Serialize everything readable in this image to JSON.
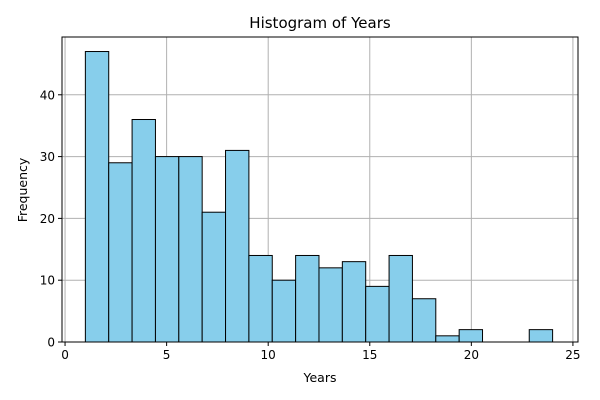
{
  "chart_data": {
    "type": "bar",
    "title": "Histogram of Years",
    "xlabel": "Years",
    "ylabel": "Frequency",
    "xlim": [
      -0.15,
      25.25
    ],
    "ylim": [
      0,
      49.35
    ],
    "x_ticks": [
      0,
      5,
      10,
      15,
      20,
      25
    ],
    "y_ticks": [
      0,
      10,
      20,
      30,
      40
    ],
    "grid": true,
    "bar_color": "#87ceeb",
    "edge_color": "#000000",
    "bins": [
      {
        "x0": 1.0,
        "x1": 2.15,
        "value": 47
      },
      {
        "x0": 2.15,
        "x1": 3.3,
        "value": 29
      },
      {
        "x0": 3.3,
        "x1": 4.45,
        "value": 36
      },
      {
        "x0": 4.45,
        "x1": 5.6,
        "value": 30
      },
      {
        "x0": 5.6,
        "x1": 6.75,
        "value": 30
      },
      {
        "x0": 6.75,
        "x1": 7.9,
        "value": 21
      },
      {
        "x0": 7.9,
        "x1": 9.05,
        "value": 31
      },
      {
        "x0": 9.05,
        "x1": 10.2,
        "value": 14
      },
      {
        "x0": 10.2,
        "x1": 11.35,
        "value": 10
      },
      {
        "x0": 11.35,
        "x1": 12.5,
        "value": 14
      },
      {
        "x0": 12.5,
        "x1": 13.65,
        "value": 12
      },
      {
        "x0": 13.65,
        "x1": 14.8,
        "value": 13
      },
      {
        "x0": 14.8,
        "x1": 15.95,
        "value": 9
      },
      {
        "x0": 15.95,
        "x1": 17.1,
        "value": 14
      },
      {
        "x0": 17.1,
        "x1": 18.25,
        "value": 7
      },
      {
        "x0": 18.25,
        "x1": 19.4,
        "value": 1
      },
      {
        "x0": 19.4,
        "x1": 20.55,
        "value": 2
      },
      {
        "x0": 20.55,
        "x1": 21.7,
        "value": 0
      },
      {
        "x0": 21.7,
        "x1": 22.85,
        "value": 0
      },
      {
        "x0": 22.85,
        "x1": 24.0,
        "value": 2
      }
    ]
  }
}
